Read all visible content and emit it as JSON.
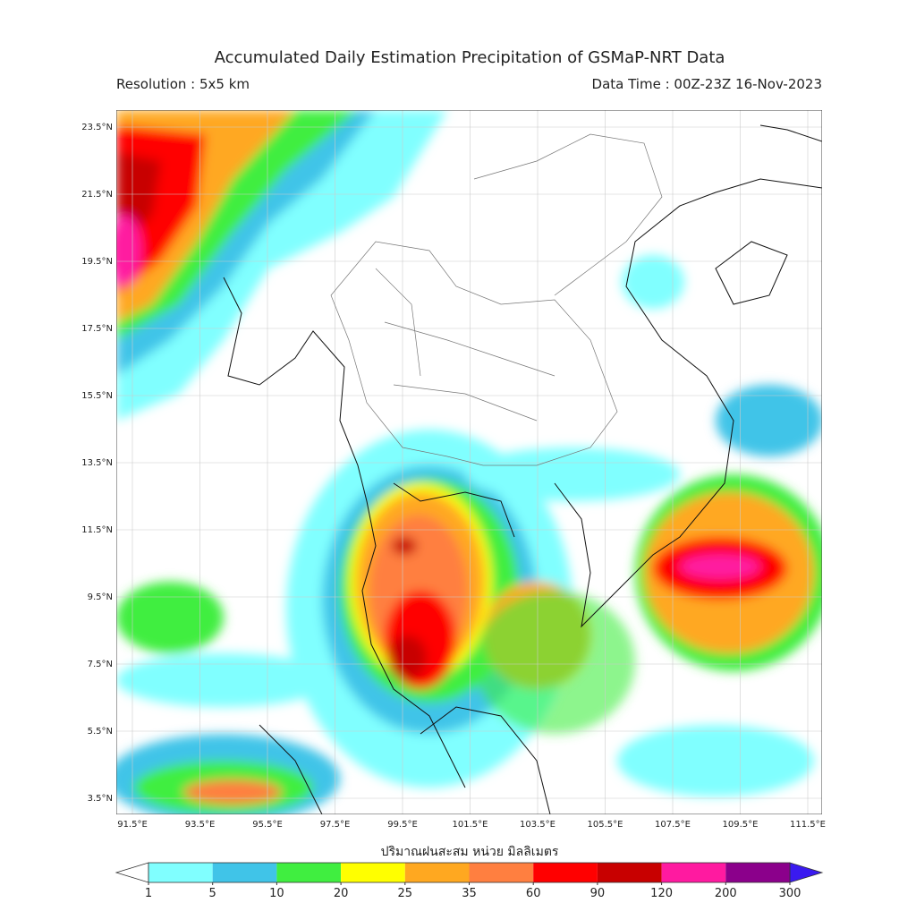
{
  "header": {
    "title": "Accumulated Daily Estimation Precipitation of GSMaP-NRT Data",
    "resolution": "Resolution : 5x5 km",
    "data_time": "Data Time : 00Z-23Z 16-Nov-2023"
  },
  "map": {
    "lat_labels": [
      "23.5°N",
      "21.5°N",
      "19.5°N",
      "17.5°N",
      "15.5°N",
      "13.5°N",
      "11.5°N",
      "9.5°N",
      "7.5°N",
      "5.5°N",
      "3.5°N"
    ],
    "lon_labels": [
      "91.5°E",
      "93.5°E",
      "95.5°E",
      "97.5°E",
      "99.5°E",
      "101.5°E",
      "103.5°E",
      "105.5°E",
      "107.5°E",
      "109.5°E",
      "111.5°E"
    ]
  },
  "colorbar": {
    "label": "ปริมาณฝนสะสม หน่วย มิลลิเมตร",
    "ticks": [
      1,
      5,
      10,
      20,
      25,
      35,
      60,
      90,
      120,
      200,
      300
    ],
    "colors": [
      "#80ffff",
      "#40c4e8",
      "#40ee40",
      "#ffff00",
      "#ffa820",
      "#ff7f40",
      "#ff0000",
      "#c80000",
      "#ff1aa0",
      "#8b008b"
    ],
    "under_color": "#ffffff",
    "over_color": "#3a1af0"
  }
}
